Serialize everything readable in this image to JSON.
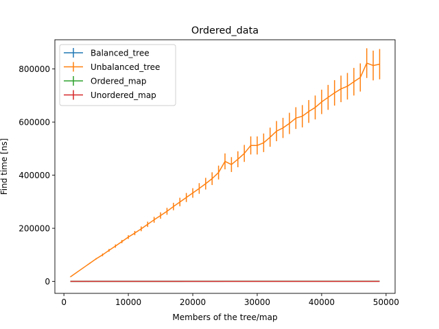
{
  "chart_data": {
    "type": "line",
    "title": "Ordered_data",
    "xlabel": "Members of the tree/map",
    "ylabel": "Find time [ns]",
    "xlim": [
      -1400,
      51400
    ],
    "ylim": [
      -45000,
      910000
    ],
    "xticks": [
      0,
      10000,
      20000,
      30000,
      40000,
      50000
    ],
    "yticks": [
      0,
      200000,
      400000,
      600000,
      800000
    ],
    "grid": false,
    "legend_position": "top-left",
    "x": [
      1000,
      2000,
      3000,
      4000,
      5000,
      6000,
      7000,
      8000,
      9000,
      10000,
      11000,
      12000,
      13000,
      14000,
      15000,
      16000,
      17000,
      18000,
      19000,
      20000,
      21000,
      22000,
      23000,
      24000,
      25000,
      26000,
      27000,
      28000,
      29000,
      30000,
      31000,
      32000,
      33000,
      34000,
      35000,
      36000,
      37000,
      38000,
      39000,
      40000,
      41000,
      42000,
      43000,
      44000,
      45000,
      46000,
      47000,
      48000,
      49000
    ],
    "series": [
      {
        "name": "Balanced_tree",
        "color": "#1f77b4",
        "values": [
          200,
          250,
          300,
          350,
          400,
          420,
          440,
          460,
          480,
          500,
          510,
          520,
          530,
          540,
          550,
          560,
          570,
          580,
          590,
          600,
          610,
          620,
          630,
          640,
          650,
          660,
          670,
          680,
          690,
          700,
          710,
          720,
          730,
          740,
          750,
          760,
          770,
          780,
          790,
          800,
          810,
          820,
          830,
          840,
          850,
          860,
          870,
          880,
          890
        ],
        "errors": [
          50,
          50,
          50,
          50,
          50,
          50,
          50,
          50,
          50,
          50,
          50,
          50,
          50,
          50,
          50,
          50,
          50,
          50,
          50,
          50,
          50,
          50,
          50,
          50,
          50,
          50,
          50,
          50,
          50,
          50,
          50,
          50,
          50,
          50,
          50,
          50,
          50,
          50,
          50,
          50,
          50,
          50,
          50,
          50,
          50,
          50,
          50,
          50,
          50
        ]
      },
      {
        "name": "Unbalanced_tree",
        "color": "#ff7f0e",
        "values": [
          17000,
          34000,
          51000,
          68000,
          85000,
          100000,
          117000,
          133000,
          150000,
          167000,
          182000,
          198000,
          215000,
          232000,
          248000,
          264000,
          282000,
          299000,
          316000,
          333000,
          350000,
          368000,
          387000,
          410000,
          452000,
          440000,
          460000,
          482000,
          512000,
          512000,
          522000,
          543000,
          566000,
          578000,
          595000,
          615000,
          622000,
          640000,
          655000,
          676000,
          693000,
          710000,
          725000,
          735000,
          752000,
          768000,
          822000,
          813000,
          818000
        ],
        "errors": [
          500,
          1000,
          1500,
          2000,
          2500,
          5000,
          5000,
          6000,
          6000,
          7000,
          8000,
          9000,
          10000,
          11000,
          12000,
          13000,
          14000,
          16000,
          17000,
          18000,
          20000,
          22000,
          24000,
          26000,
          30000,
          28000,
          30000,
          32000,
          34000,
          34000,
          35000,
          36000,
          38000,
          38000,
          40000,
          41000,
          42000,
          43000,
          45000,
          46000,
          47000,
          48000,
          50000,
          50000,
          52000,
          53000,
          56000,
          56000,
          57000
        ]
      },
      {
        "name": "Ordered_map",
        "color": "#2ca02c",
        "values": [
          150,
          180,
          200,
          220,
          240,
          250,
          260,
          270,
          280,
          290,
          300,
          305,
          310,
          315,
          320,
          325,
          330,
          335,
          340,
          345,
          350,
          355,
          360,
          365,
          370,
          375,
          380,
          385,
          390,
          395,
          400,
          405,
          410,
          415,
          420,
          425,
          430,
          435,
          440,
          445,
          450,
          455,
          460,
          465,
          470,
          475,
          480,
          485,
          490
        ],
        "errors": [
          30,
          30,
          30,
          30,
          30,
          30,
          30,
          30,
          30,
          30,
          30,
          30,
          30,
          30,
          30,
          30,
          30,
          30,
          30,
          30,
          30,
          30,
          30,
          30,
          30,
          30,
          30,
          30,
          30,
          30,
          30,
          30,
          30,
          30,
          30,
          30,
          30,
          30,
          30,
          30,
          30,
          30,
          30,
          30,
          30,
          30,
          30,
          30,
          30
        ]
      },
      {
        "name": "Unordered_map",
        "color": "#d62728",
        "values": [
          100,
          110,
          120,
          125,
          130,
          135,
          140,
          145,
          150,
          150,
          155,
          155,
          160,
          160,
          165,
          165,
          170,
          170,
          175,
          175,
          180,
          180,
          185,
          185,
          190,
          190,
          195,
          195,
          200,
          200,
          205,
          205,
          210,
          210,
          215,
          215,
          220,
          220,
          225,
          225,
          230,
          230,
          235,
          235,
          240,
          240,
          245,
          245,
          250
        ],
        "errors": [
          20,
          20,
          20,
          20,
          20,
          20,
          20,
          20,
          20,
          20,
          20,
          20,
          20,
          20,
          20,
          20,
          20,
          20,
          20,
          20,
          20,
          20,
          20,
          20,
          20,
          20,
          20,
          20,
          20,
          20,
          20,
          20,
          20,
          20,
          20,
          20,
          20,
          20,
          20,
          20,
          20,
          20,
          20,
          20,
          20,
          20,
          20,
          20,
          20
        ]
      }
    ]
  }
}
